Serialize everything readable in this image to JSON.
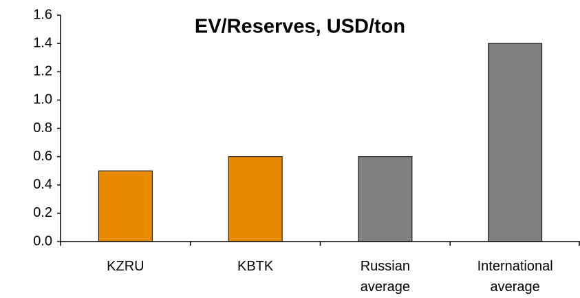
{
  "chart_data": {
    "type": "bar",
    "title": "EV/Reserves, USD/ton",
    "categories": [
      "KZRU",
      "KBTK",
      "Russian average",
      "International average"
    ],
    "values": [
      0.5,
      0.6,
      0.6,
      1.4
    ],
    "colors": [
      "#e88a00",
      "#e88a00",
      "#808080",
      "#808080"
    ],
    "ylim": [
      0,
      1.6
    ],
    "yticks": [
      {
        "value": 0,
        "label": "0.0"
      },
      0.2,
      0.4,
      0.6,
      0.8,
      {
        "value": 1,
        "label": "1.0"
      },
      1.2,
      1.4,
      1.6
    ],
    "grid": false
  }
}
